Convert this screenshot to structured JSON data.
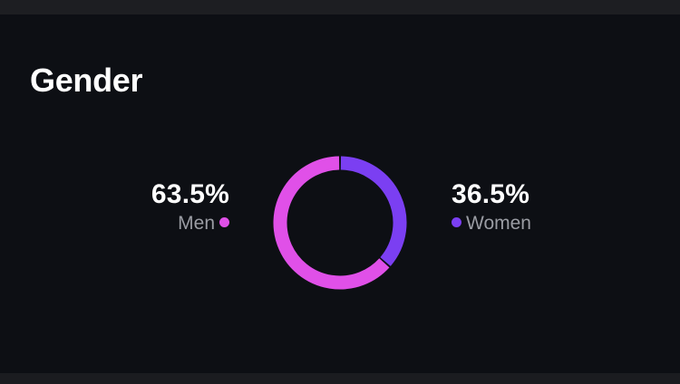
{
  "card": {
    "title": "Gender"
  },
  "chart_data": {
    "type": "pie",
    "style": "donut",
    "categories": [
      "Men",
      "Women"
    ],
    "values": [
      63.5,
      36.5
    ],
    "series": [
      {
        "name": "Men",
        "value": 63.5,
        "label": "63.5%",
        "color": "#e050e8"
      },
      {
        "name": "Women",
        "value": 36.5,
        "label": "36.5%",
        "color": "#7b3ff2"
      }
    ]
  },
  "colors": {
    "background": "#0d0f14",
    "men": "#e050e8",
    "women": "#7b3ff2",
    "text_primary": "#ffffff",
    "text_secondary": "#9a9ca3"
  }
}
